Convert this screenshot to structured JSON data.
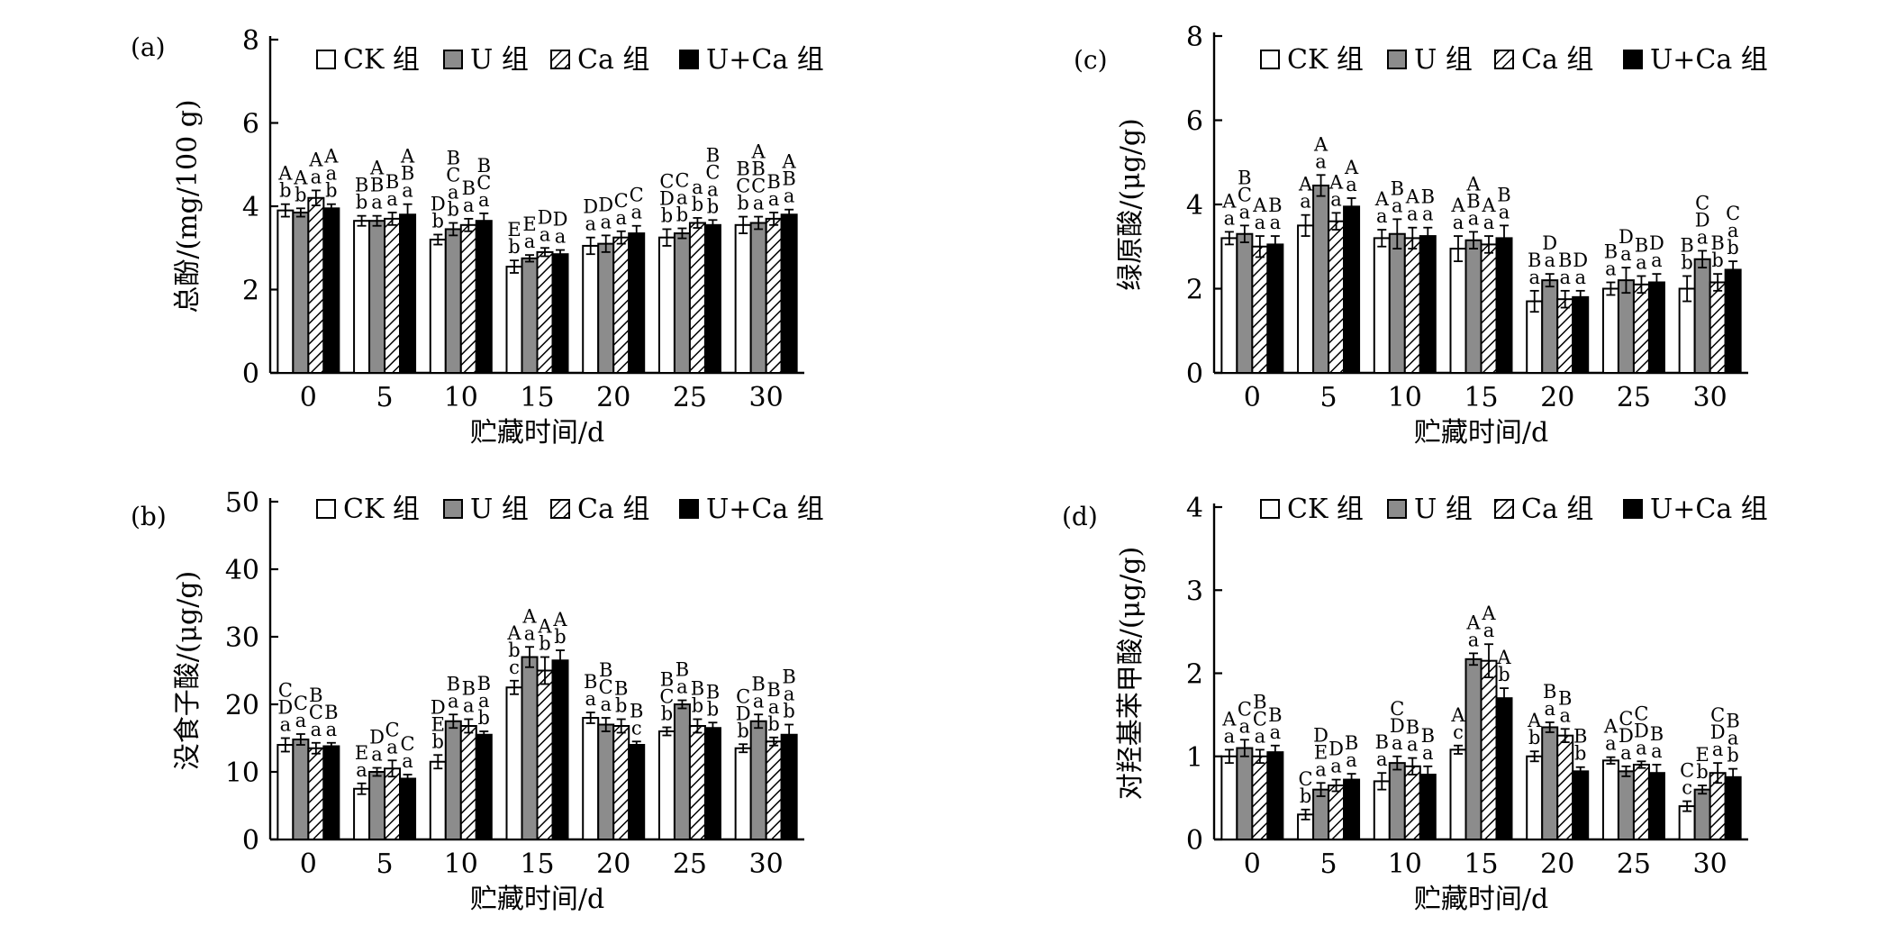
{
  "legend": [
    "CK 组",
    "U 组",
    "Ca 组",
    "U+Ca 组"
  ],
  "series_colors": {
    "CK": "#ffffff",
    "U": "#8c8c8c",
    "Ca": "hatch",
    "U+Ca": "#000000"
  },
  "chart_data": [
    {
      "id": "a",
      "panel_label": "(a)",
      "type": "bar",
      "title": "",
      "xlabel": "贮藏时间/d",
      "ylabel": "总酚/(mg/100 g)",
      "ylim": [
        0,
        8
      ],
      "yticks": [
        0,
        2,
        4,
        6,
        8
      ],
      "categories": [
        "0",
        "5",
        "10",
        "15",
        "20",
        "25",
        "30"
      ],
      "legend_position": "top",
      "series": [
        {
          "name": "CK 组",
          "values": [
            3.9,
            3.65,
            3.2,
            2.55,
            3.05,
            3.25,
            3.55
          ],
          "errors": [
            0.15,
            0.12,
            0.12,
            0.15,
            0.2,
            0.2,
            0.2
          ]
        },
        {
          "name": "U 组",
          "values": [
            3.85,
            3.65,
            3.45,
            2.75,
            3.1,
            3.35,
            3.6
          ],
          "errors": [
            0.1,
            0.12,
            0.15,
            0.08,
            0.2,
            0.12,
            0.15
          ]
        },
        {
          "name": "Ca 组",
          "values": [
            4.2,
            3.7,
            3.55,
            2.9,
            3.25,
            3.6,
            3.7
          ],
          "errors": [
            0.18,
            0.15,
            0.15,
            0.1,
            0.15,
            0.12,
            0.15
          ]
        },
        {
          "name": "U+Ca 组",
          "values": [
            3.95,
            3.8,
            3.65,
            2.85,
            3.35,
            3.55,
            3.8
          ],
          "errors": [
            0.1,
            0.25,
            0.18,
            0.1,
            0.18,
            0.12,
            0.12
          ]
        }
      ],
      "annotations": [
        [
          [
            "A",
            "b"
          ],
          [
            "A",
            "b"
          ],
          [
            "A",
            "a"
          ],
          [
            "A",
            "a",
            "b"
          ]
        ],
        [
          [
            "B",
            "b"
          ],
          [
            "A",
            "B",
            "a"
          ],
          [
            "B",
            "a"
          ],
          [
            "A",
            "B",
            "a"
          ]
        ],
        [
          [
            "D",
            "b"
          ],
          [
            "B",
            "C",
            "a",
            "b"
          ],
          [
            "B",
            "a"
          ],
          [
            "B",
            "C",
            "a"
          ]
        ],
        [
          [
            "E",
            "b"
          ],
          [
            "E",
            "a"
          ],
          [
            "D",
            "a"
          ],
          [
            "D",
            "a"
          ]
        ],
        [
          [
            "D",
            "a"
          ],
          [
            "D",
            "a"
          ],
          [
            "C",
            "a"
          ],
          [
            "C",
            "a"
          ]
        ],
        [
          [
            "C",
            "D",
            "b"
          ],
          [
            "C",
            "a",
            "b"
          ],
          [
            "a",
            "b"
          ],
          [
            "B",
            "C",
            "a",
            "b"
          ]
        ],
        [
          [
            "B",
            "C",
            "b"
          ],
          [
            "A",
            "B",
            "C",
            "a"
          ],
          [
            "B",
            "a"
          ],
          [
            "A",
            "B",
            "a"
          ]
        ]
      ]
    },
    {
      "id": "b",
      "panel_label": "(b)",
      "type": "bar",
      "title": "",
      "xlabel": "贮藏时间/d",
      "ylabel": "没食子酸/(μg/g)",
      "ylim": [
        0,
        50
      ],
      "yticks": [
        0,
        10,
        20,
        30,
        40,
        50
      ],
      "categories": [
        "0",
        "5",
        "10",
        "15",
        "20",
        "25",
        "30"
      ],
      "legend_position": "top",
      "series": [
        {
          "name": "CK 组",
          "values": [
            14,
            7.5,
            11.5,
            22.5,
            18,
            16,
            13.5
          ],
          "errors": [
            1,
            0.8,
            1,
            1,
            0.8,
            0.6,
            0.6
          ]
        },
        {
          "name": "U 组",
          "values": [
            14.8,
            10,
            17.5,
            27,
            17,
            20,
            17.5
          ],
          "errors": [
            0.8,
            0.6,
            1,
            1.5,
            1,
            0.6,
            1
          ]
        },
        {
          "name": "Ca 组",
          "values": [
            13.5,
            10.5,
            16.8,
            25,
            16.8,
            16.8,
            14.5
          ],
          "errors": [
            0.8,
            1.2,
            1,
            2,
            1,
            1,
            0.6
          ]
        },
        {
          "name": "U+Ca 组",
          "values": [
            13.8,
            9,
            15.5,
            26.5,
            14,
            16.5,
            15.5
          ],
          "errors": [
            0.5,
            0.6,
            0.5,
            1.5,
            0.5,
            0.8,
            1.5
          ]
        }
      ],
      "annotations": [
        [
          [
            "C",
            "D",
            "a"
          ],
          [
            "C",
            "a"
          ],
          [
            "B",
            "C",
            "a"
          ],
          [
            "B",
            "a"
          ]
        ],
        [
          [
            "E",
            "a"
          ],
          [
            "D",
            "a"
          ],
          [
            "C",
            "a"
          ],
          [
            "C",
            "a"
          ]
        ],
        [
          [
            "D",
            "E",
            "b"
          ],
          [
            "B",
            "a"
          ],
          [
            "B",
            "a"
          ],
          [
            "B",
            "a",
            "b"
          ]
        ],
        [
          [
            "A",
            "b",
            "c"
          ],
          [
            "A",
            "a"
          ],
          [
            "A",
            "b"
          ],
          [
            "A",
            "b"
          ]
        ],
        [
          [
            "B",
            "a"
          ],
          [
            "B",
            "C",
            "a"
          ],
          [
            "B",
            "b"
          ],
          [
            "B",
            "c"
          ]
        ],
        [
          [
            "B",
            "C",
            "b"
          ],
          [
            "B",
            "a"
          ],
          [
            "B",
            "b"
          ],
          [
            "B",
            "b"
          ]
        ],
        [
          [
            "C",
            "D",
            "b"
          ],
          [
            "B",
            "a"
          ],
          [
            "B",
            "a",
            "b"
          ],
          [
            "B",
            "a",
            "b"
          ]
        ]
      ]
    },
    {
      "id": "c",
      "panel_label": "(c)",
      "type": "bar",
      "title": "",
      "xlabel": "贮藏时间/d",
      "ylabel": "绿原酸/(μg/g)",
      "ylim": [
        0,
        8
      ],
      "yticks": [
        0,
        2,
        4,
        6,
        8
      ],
      "categories": [
        "0",
        "5",
        "10",
        "15",
        "20",
        "25",
        "30"
      ],
      "legend_position": "top",
      "series": [
        {
          "name": "CK 组",
          "values": [
            3.2,
            3.5,
            3.2,
            2.95,
            1.7,
            2.0,
            2.0
          ],
          "errors": [
            0.15,
            0.25,
            0.2,
            0.3,
            0.25,
            0.15,
            0.3
          ]
        },
        {
          "name": "U 组",
          "values": [
            3.3,
            4.45,
            3.3,
            3.15,
            2.2,
            2.2,
            2.7
          ],
          "errors": [
            0.2,
            0.25,
            0.35,
            0.2,
            0.15,
            0.3,
            0.2
          ]
        },
        {
          "name": "Ca 组",
          "values": [
            3.0,
            3.6,
            3.2,
            3.05,
            1.75,
            2.1,
            2.15
          ],
          "errors": [
            0.25,
            0.2,
            0.25,
            0.2,
            0.2,
            0.2,
            0.2
          ]
        },
        {
          "name": "U+Ca 组",
          "values": [
            3.05,
            3.95,
            3.25,
            3.2,
            1.8,
            2.15,
            2.45
          ],
          "errors": [
            0.2,
            0.2,
            0.2,
            0.3,
            0.15,
            0.2,
            0.2
          ]
        }
      ],
      "annotations": [
        [
          [
            "A",
            "a"
          ],
          [
            "B",
            "C",
            "a"
          ],
          [
            "A",
            "a"
          ],
          [
            "B",
            "a"
          ]
        ],
        [
          [
            "A",
            "a"
          ],
          [
            "A",
            "a"
          ],
          [
            "A",
            "a"
          ],
          [
            "A",
            "a"
          ]
        ],
        [
          [
            "A",
            "a"
          ],
          [
            "B",
            "a"
          ],
          [
            "A",
            "a"
          ],
          [
            "B",
            "a"
          ]
        ],
        [
          [
            "A",
            "a"
          ],
          [
            "A",
            "B",
            "a"
          ],
          [
            "A",
            "a"
          ],
          [
            "B",
            "a"
          ]
        ],
        [
          [
            "B",
            "a"
          ],
          [
            "D",
            "a"
          ],
          [
            "B",
            "a"
          ],
          [
            "D",
            "a"
          ]
        ],
        [
          [
            "B",
            "a"
          ],
          [
            "D",
            "a"
          ],
          [
            "B",
            "a"
          ],
          [
            "D",
            "a"
          ]
        ],
        [
          [
            "B",
            "b"
          ],
          [
            "C",
            "D",
            "a"
          ],
          [
            "B",
            "b"
          ],
          [
            "C",
            "a",
            "b"
          ]
        ]
      ]
    },
    {
      "id": "d",
      "panel_label": "(d)",
      "type": "bar",
      "title": "",
      "xlabel": "贮藏时间/d",
      "ylabel": "对羟基苯甲酸/(μg/g)",
      "ylim": [
        0,
        4
      ],
      "yticks": [
        0,
        1,
        2,
        3,
        4
      ],
      "categories": [
        "0",
        "5",
        "10",
        "15",
        "20",
        "25",
        "30"
      ],
      "legend_position": "top",
      "series": [
        {
          "name": "CK 组",
          "values": [
            1.0,
            0.3,
            0.7,
            1.08,
            1.0,
            0.95,
            0.4
          ],
          "errors": [
            0.08,
            0.06,
            0.1,
            0.05,
            0.06,
            0.04,
            0.06
          ]
        },
        {
          "name": "U 组",
          "values": [
            1.1,
            0.6,
            0.92,
            2.17,
            1.35,
            0.82,
            0.6
          ],
          "errors": [
            0.1,
            0.08,
            0.08,
            0.07,
            0.06,
            0.06,
            0.05
          ]
        },
        {
          "name": "Ca 组",
          "values": [
            1.0,
            0.65,
            0.88,
            2.15,
            1.25,
            0.9,
            0.8
          ],
          "errors": [
            0.08,
            0.07,
            0.1,
            0.2,
            0.08,
            0.04,
            0.12
          ]
        },
        {
          "name": "U+Ca 组",
          "values": [
            1.05,
            0.72,
            0.78,
            1.7,
            0.82,
            0.8,
            0.75
          ],
          "errors": [
            0.08,
            0.07,
            0.1,
            0.12,
            0.05,
            0.1,
            0.1
          ]
        }
      ],
      "annotations": [
        [
          [
            "A",
            "a"
          ],
          [
            "C",
            "a"
          ],
          [
            "B",
            "C",
            "a"
          ],
          [
            "B",
            "a"
          ]
        ],
        [
          [
            "C",
            "b"
          ],
          [
            "D",
            "E",
            "a"
          ],
          [
            "D",
            "a"
          ],
          [
            "B",
            "a"
          ]
        ],
        [
          [
            "B",
            "a"
          ],
          [
            "C",
            "D",
            "a"
          ],
          [
            "B",
            "a"
          ],
          [
            "B",
            "a"
          ]
        ],
        [
          [
            "A",
            "c"
          ],
          [
            "A",
            "a"
          ],
          [
            "A",
            "a"
          ],
          [
            "A",
            "b"
          ]
        ],
        [
          [
            "A",
            "b"
          ],
          [
            "B",
            "a"
          ],
          [
            "B",
            "a"
          ],
          [
            "B",
            "b"
          ]
        ],
        [
          [
            "A",
            "a"
          ],
          [
            "C",
            "D",
            "a"
          ],
          [
            "C",
            "D",
            "a"
          ],
          [
            "B",
            "a"
          ]
        ],
        [
          [
            "C",
            "c"
          ],
          [
            "E",
            "b"
          ],
          [
            "C",
            "D",
            "a"
          ],
          [
            "B",
            "a",
            "b"
          ]
        ]
      ]
    }
  ]
}
